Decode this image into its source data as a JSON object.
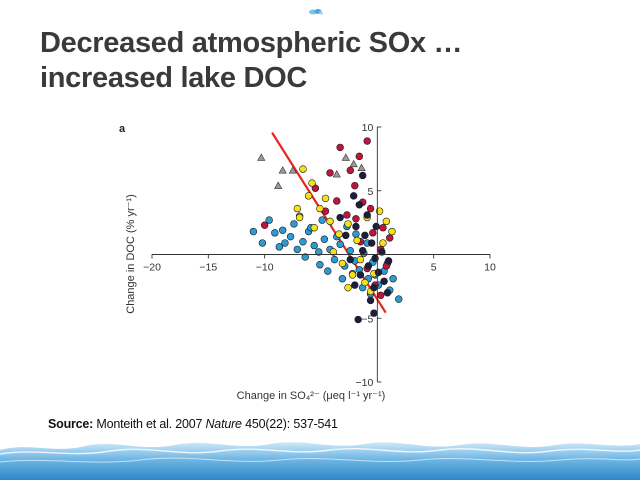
{
  "slide": {
    "title_line1": "Decreased atmospheric SOx …",
    "title_line2": "increased lake DOC",
    "panel_label": "a",
    "source_label": "Source:",
    "source_authors": " Monteith et al. 2007  ",
    "source_journal": "Nature",
    "source_citation": " 450(22): 537-541",
    "decor_icon": "water-drop-icon"
  },
  "colors": {
    "title": "#3a3a3a",
    "blue": "#2b9bd3",
    "red": "#c0143c",
    "yellow": "#f4e11c",
    "navy": "#1a1f3d",
    "grey": "#9a9a9a",
    "trend": "#e8261f",
    "water": "#5aa8dc"
  },
  "chart_data": {
    "type": "scatter",
    "xlabel": "Change in SO₄²⁻ (μeq l⁻¹ yr⁻¹)",
    "ylabel": "Change in DOC (% yr⁻¹)",
    "xlim": [
      -20,
      10
    ],
    "ylim": [
      -10,
      10
    ],
    "x_ticks": [
      -20,
      -15,
      -10,
      5,
      10
    ],
    "y_ticks": [
      10,
      5,
      -5,
      -10
    ],
    "x_tick_labels": [
      "−20",
      "−15",
      "−10",
      "5",
      "10"
    ],
    "y_tick_labels": [
      "10",
      "5",
      "−5",
      "−10"
    ],
    "grid": false,
    "legend": "none",
    "trend_line": {
      "x": [
        -9.3,
        0.7
      ],
      "y": [
        9.5,
        -4.5
      ]
    },
    "series": [
      {
        "color": "blue",
        "marker": "circle",
        "points": [
          [
            -11,
            1.8
          ],
          [
            -10.2,
            0.9
          ],
          [
            -9.6,
            2.7
          ],
          [
            -9.1,
            1.7
          ],
          [
            -8.7,
            0.6
          ],
          [
            -8.2,
            0.9
          ],
          [
            -7.7,
            1.4
          ],
          [
            -7.1,
            0.4
          ],
          [
            -6.6,
            1.0
          ],
          [
            -6.1,
            1.8
          ],
          [
            -5.6,
            0.7
          ],
          [
            -5.2,
            0.2
          ],
          [
            -4.7,
            1.2
          ],
          [
            -4.2,
            0.4
          ],
          [
            -3.8,
            -0.4
          ],
          [
            -3.3,
            0.8
          ],
          [
            -2.9,
            -0.9
          ],
          [
            -2.4,
            0.3
          ],
          [
            -2.0,
            -0.5
          ],
          [
            -1.6,
            -1.2
          ],
          [
            -1.2,
            0.1
          ],
          [
            -0.8,
            -1.9
          ],
          [
            -0.4,
            -0.6
          ],
          [
            0.1,
            -2.4
          ],
          [
            0.6,
            -1.3
          ],
          [
            1.1,
            -2.8
          ],
          [
            -6.4,
            -0.2
          ],
          [
            -5.1,
            -0.8
          ],
          [
            -4.4,
            -1.3
          ],
          [
            -7.4,
            2.4
          ],
          [
            -8.4,
            1.9
          ],
          [
            -3.6,
            1.4
          ],
          [
            -2.7,
            2.2
          ],
          [
            -1.9,
            1.6
          ],
          [
            -0.9,
            0.9
          ],
          [
            -0.2,
            -1.6
          ],
          [
            0.9,
            -0.7
          ],
          [
            -4.9,
            2.7
          ],
          [
            -6.9,
            3.0
          ],
          [
            -3.1,
            -1.9
          ],
          [
            -1.3,
            -2.6
          ],
          [
            1.9,
            -3.5
          ],
          [
            -5.9,
            2.1
          ],
          [
            -2.2,
            -1.5
          ],
          [
            -0.6,
            -3.1
          ],
          [
            1.4,
            -1.9
          ]
        ]
      },
      {
        "color": "red",
        "marker": "circle",
        "points": [
          [
            -3.3,
            8.4
          ],
          [
            -1.6,
            7.7
          ],
          [
            -0.9,
            8.9
          ],
          [
            -2.4,
            6.6
          ],
          [
            -4.2,
            6.4
          ],
          [
            -5.5,
            5.2
          ],
          [
            -3.6,
            4.2
          ],
          [
            -2.0,
            5.4
          ],
          [
            -1.3,
            4.1
          ],
          [
            -0.6,
            3.6
          ],
          [
            -10.0,
            2.3
          ],
          [
            -1.9,
            2.8
          ],
          [
            -0.4,
            1.7
          ],
          [
            0.3,
            0.4
          ],
          [
            -0.9,
            -1.1
          ],
          [
            -0.2,
            -2.4
          ],
          [
            0.8,
            -0.9
          ],
          [
            0.5,
            2.1
          ],
          [
            -1.5,
            1.0
          ],
          [
            -4.6,
            3.4
          ],
          [
            1.1,
            1.3
          ],
          [
            -2.7,
            3.1
          ],
          [
            0.3,
            -3.2
          ]
        ]
      },
      {
        "color": "yellow",
        "marker": "circle",
        "points": [
          [
            -6.6,
            6.7
          ],
          [
            -5.8,
            5.6
          ],
          [
            -6.1,
            4.6
          ],
          [
            -5.1,
            3.6
          ],
          [
            -6.9,
            2.9
          ],
          [
            -5.6,
            2.1
          ],
          [
            -4.2,
            2.6
          ],
          [
            -3.4,
            1.6
          ],
          [
            -2.6,
            2.4
          ],
          [
            -1.8,
            1.1
          ],
          [
            -0.9,
            2.9
          ],
          [
            0.2,
            3.4
          ],
          [
            0.8,
            2.6
          ],
          [
            1.3,
            1.8
          ],
          [
            -2.2,
            -1.6
          ],
          [
            -1.1,
            -2.2
          ],
          [
            -0.6,
            -2.9
          ],
          [
            -3.1,
            -0.7
          ],
          [
            -0.3,
            -1.5
          ],
          [
            -2.6,
            -2.6
          ],
          [
            -4.6,
            4.4
          ],
          [
            -7.1,
            3.6
          ],
          [
            -3.9,
            0.2
          ],
          [
            0.5,
            0.9
          ],
          [
            -1.5,
            -0.4
          ]
        ]
      },
      {
        "color": "navy",
        "marker": "circle",
        "points": [
          [
            -1.3,
            6.2
          ],
          [
            -2.1,
            4.6
          ],
          [
            -1.6,
            3.9
          ],
          [
            -0.9,
            3.1
          ],
          [
            -1.9,
            2.2
          ],
          [
            -1.1,
            1.5
          ],
          [
            -0.5,
            0.9
          ],
          [
            -1.3,
            0.3
          ],
          [
            -0.2,
            -0.3
          ],
          [
            -0.8,
            -0.9
          ],
          [
            0.1,
            -1.4
          ],
          [
            0.6,
            -2.1
          ],
          [
            -0.3,
            -2.6
          ],
          [
            0.9,
            -3.0
          ],
          [
            -0.6,
            -3.6
          ],
          [
            -1.7,
            -5.1
          ],
          [
            -0.3,
            -4.6
          ],
          [
            -2.4,
            -0.4
          ],
          [
            -1.5,
            -1.6
          ],
          [
            0.4,
            0.2
          ],
          [
            1.0,
            -0.5
          ],
          [
            -2.8,
            1.5
          ],
          [
            -0.1,
            2.2
          ],
          [
            -3.3,
            2.9
          ],
          [
            -2.0,
            -2.4
          ]
        ]
      },
      {
        "color": "grey",
        "marker": "triangle",
        "points": [
          [
            -10.3,
            7.6
          ],
          [
            -8.4,
            6.6
          ],
          [
            -8.8,
            5.4
          ],
          [
            -7.5,
            6.6
          ],
          [
            -3.6,
            6.3
          ],
          [
            -1.4,
            6.8
          ],
          [
            -2.8,
            7.6
          ],
          [
            -2.1,
            7.1
          ]
        ]
      }
    ]
  }
}
